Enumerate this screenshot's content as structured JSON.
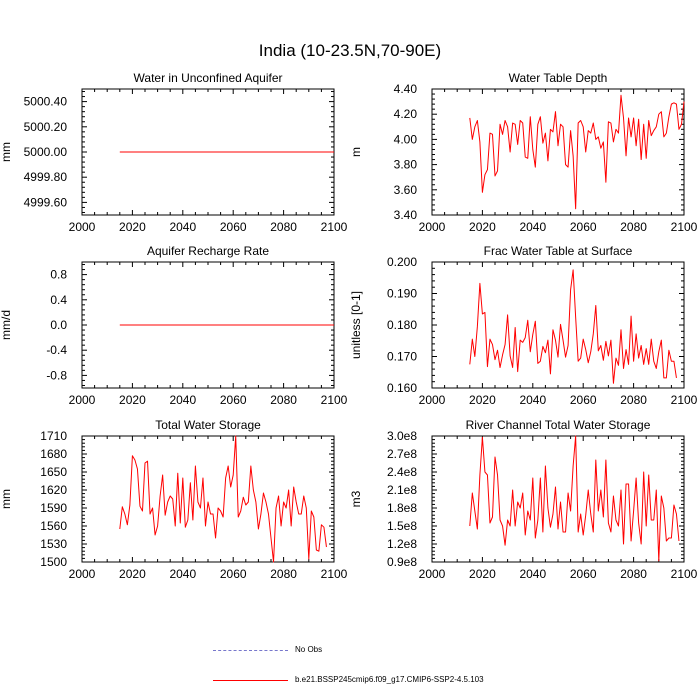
{
  "figure_title": "India (10-23.5N,70-90E)",
  "legend": {
    "obs_label": "No Obs",
    "model_label": "b.e21.BSSP245cmip6.f09_g17.CMIP6-SSP2-4.5.103",
    "obs_color": "#7777cc",
    "model_color": "#ff0000"
  },
  "chart_data": [
    {
      "type": "line",
      "title": "Water in Unconfined Aquifer",
      "ylabel": "mm",
      "xlim": [
        2000,
        2100
      ],
      "ylim": [
        4999.5,
        5000.5
      ],
      "xticks": [
        2000,
        2020,
        2040,
        2060,
        2080,
        2100
      ],
      "yticks": [
        4999.6,
        4999.8,
        5000.0,
        5000.2,
        5000.4
      ],
      "ytick_labels": [
        "4999.60",
        "4999.80",
        "5000.00",
        "5000.20",
        "5000.40"
      ],
      "series": [
        {
          "name": "b.e21.BSSP245cmip6.f09_g17.CMIP6-SSP2-4.5.103",
          "x_start": 2015,
          "values": [
            5000,
            5000,
            5000,
            5000,
            5000,
            5000,
            5000,
            5000,
            5000,
            5000,
            5000,
            5000,
            5000,
            5000,
            5000,
            5000,
            5000,
            5000,
            5000,
            5000,
            5000,
            5000,
            5000,
            5000,
            5000,
            5000,
            5000,
            5000,
            5000,
            5000,
            5000,
            5000,
            5000,
            5000,
            5000,
            5000,
            5000,
            5000,
            5000,
            5000,
            5000,
            5000,
            5000,
            5000,
            5000,
            5000,
            5000,
            5000,
            5000,
            5000,
            5000,
            5000,
            5000,
            5000,
            5000,
            5000,
            5000,
            5000,
            5000,
            5000,
            5000,
            5000,
            5000,
            5000,
            5000,
            5000,
            5000,
            5000,
            5000,
            5000,
            5000,
            5000,
            5000,
            5000,
            5000,
            5000,
            5000,
            5000,
            5000,
            5000,
            5000,
            5000,
            5000,
            5000,
            5000,
            5000
          ]
        }
      ]
    },
    {
      "type": "line",
      "title": "Water Table Depth",
      "ylabel": "m",
      "xlim": [
        2000,
        2100
      ],
      "ylim": [
        3.4,
        4.4
      ],
      "xticks": [
        2000,
        2020,
        2040,
        2060,
        2080,
        2100
      ],
      "yticks": [
        3.4,
        3.6,
        3.8,
        4.0,
        4.2,
        4.4
      ],
      "ytick_labels": [
        "3.40",
        "3.60",
        "3.80",
        "4.00",
        "4.20",
        "4.40"
      ],
      "series": [
        {
          "name": "b.e21.BSSP245cmip6.f09_g17.CMIP6-SSP2-4.5.103",
          "x_start": 2015,
          "values": [
            4.17,
            4.0,
            4.1,
            4.15,
            3.98,
            3.58,
            3.72,
            3.76,
            4.05,
            4.04,
            3.71,
            3.75,
            4.12,
            4.04,
            4.15,
            4.1,
            3.9,
            4.13,
            4.12,
            3.96,
            4.15,
            4.13,
            3.86,
            3.85,
            4.18,
            3.92,
            3.78,
            4.12,
            4.18,
            3.97,
            4.05,
            3.83,
            4.08,
            4.06,
            4.22,
            3.95,
            4.12,
            4.1,
            3.8,
            3.78,
            4.07,
            3.87,
            3.45,
            4.13,
            4.15,
            4.1,
            3.9,
            4.07,
            4.05,
            4.13,
            4.0,
            4.02,
            3.93,
            3.98,
            3.66,
            4.14,
            4.13,
            3.98,
            4.08,
            4.05,
            4.35,
            4.17,
            3.87,
            4.17,
            4.02,
            4.17,
            3.95,
            4.16,
            3.84,
            4.12,
            3.85,
            4.15,
            4.03,
            4.07,
            4.1,
            4.2,
            4.22,
            4.02,
            4.05,
            4.18,
            4.28,
            4.29,
            4.28,
            4.08,
            4.12,
            4.3
          ]
        }
      ]
    },
    {
      "type": "line",
      "title": "Aquifer Recharge Rate",
      "ylabel": "mm/d",
      "xlim": [
        2000,
        2100
      ],
      "ylim": [
        -1.0,
        1.0
      ],
      "xticks": [
        2000,
        2020,
        2040,
        2060,
        2080,
        2100
      ],
      "yticks": [
        -0.8,
        -0.4,
        0.0,
        0.4,
        0.8
      ],
      "ytick_labels": [
        "-0.8",
        "-0.4",
        "0.0",
        "0.4",
        "0.8"
      ],
      "series": [
        {
          "name": "b.e21.BSSP245cmip6.f09_g17.CMIP6-SSP2-4.5.103",
          "x_start": 2015,
          "values": [
            0,
            0,
            0,
            0,
            0,
            0,
            0,
            0,
            0,
            0,
            0,
            0,
            0,
            0,
            0,
            0,
            0,
            0,
            0,
            0,
            0,
            0,
            0,
            0,
            0,
            0,
            0,
            0,
            0,
            0,
            0,
            0,
            0,
            0,
            0,
            0,
            0,
            0,
            0,
            0,
            0,
            0,
            0,
            0,
            0,
            0,
            0,
            0,
            0,
            0,
            0,
            0,
            0,
            0,
            0,
            0,
            0,
            0,
            0,
            0,
            0,
            0,
            0,
            0,
            0,
            0,
            0,
            0,
            0,
            0,
            0,
            0,
            0,
            0,
            0,
            0,
            0,
            0,
            0,
            0,
            0,
            0,
            0,
            0,
            0,
            0
          ]
        }
      ]
    },
    {
      "type": "line",
      "title": "Frac Water Table at Surface",
      "ylabel": "unitless [0-1]",
      "xlim": [
        2000,
        2100
      ],
      "ylim": [
        0.16,
        0.2
      ],
      "xticks": [
        2000,
        2020,
        2040,
        2060,
        2080,
        2100
      ],
      "yticks": [
        0.16,
        0.17,
        0.18,
        0.19,
        0.2
      ],
      "ytick_labels": [
        "0.160",
        "0.170",
        "0.180",
        "0.190",
        "0.200"
      ],
      "series": [
        {
          "name": "b.e21.BSSP245cmip6.f09_g17.CMIP6-SSP2-4.5.103",
          "x_start": 2015,
          "values": [
            0.1675,
            0.1755,
            0.17,
            0.1795,
            0.1932,
            0.1835,
            0.184,
            0.1668,
            0.1755,
            0.1738,
            0.169,
            0.172,
            0.1665,
            0.1705,
            0.1738,
            0.1832,
            0.1702,
            0.1665,
            0.1792,
            0.1652,
            0.1752,
            0.1745,
            0.176,
            0.1815,
            0.1715,
            0.177,
            0.1812,
            0.1678,
            0.1685,
            0.1732,
            0.1712,
            0.1752,
            0.1645,
            0.1785,
            0.1752,
            0.1698,
            0.1802,
            0.1752,
            0.1698,
            0.1735,
            0.1912,
            0.1975,
            0.1825,
            0.1685,
            0.1695,
            0.1755,
            0.1722,
            0.168,
            0.1715,
            0.1772,
            0.1862,
            0.1718,
            0.1735,
            0.1688,
            0.1748,
            0.1702,
            0.1752,
            0.1615,
            0.1695,
            0.1672,
            0.1785,
            0.1662,
            0.1722,
            0.1675,
            0.1828,
            0.1685,
            0.1772,
            0.1695,
            0.1735,
            0.1675,
            0.1725,
            0.1675,
            0.1755,
            0.1685,
            0.1662,
            0.1715,
            0.1752,
            0.1632,
            0.1632,
            0.172,
            0.1685,
            0.1685,
            0.1632
          ]
        }
      ]
    },
    {
      "type": "line",
      "title": "Total Water Storage",
      "ylabel": "mm",
      "xlim": [
        2000,
        2100
      ],
      "ylim": [
        1500,
        1710
      ],
      "xticks": [
        2000,
        2020,
        2040,
        2060,
        2080,
        2100
      ],
      "yticks": [
        1500,
        1530,
        1560,
        1590,
        1620,
        1650,
        1680,
        1710
      ],
      "ytick_labels": [
        "1500",
        "1530",
        "1560",
        "1590",
        "1620",
        "1650",
        "1680",
        "1710"
      ],
      "series": [
        {
          "name": "b.e21.BSSP245cmip6.f09_g17.CMIP6-SSP2-4.5.103",
          "x_start": 2015,
          "values": [
            1555,
            1592,
            1580,
            1562,
            1595,
            1677,
            1670,
            1655,
            1593,
            1585,
            1665,
            1668,
            1580,
            1590,
            1545,
            1560,
            1610,
            1645,
            1578,
            1600,
            1610,
            1605,
            1560,
            1648,
            1565,
            1640,
            1558,
            1570,
            1632,
            1570,
            1660,
            1600,
            1590,
            1640,
            1560,
            1600,
            1580,
            1580,
            1540,
            1590,
            1585,
            1575,
            1640,
            1660,
            1625,
            1645,
            1710,
            1575,
            1585,
            1608,
            1595,
            1600,
            1660,
            1620,
            1600,
            1555,
            1580,
            1615,
            1600,
            1580,
            1540,
            1500,
            1590,
            1610,
            1560,
            1600,
            1590,
            1620,
            1560,
            1625,
            1600,
            1580,
            1580,
            1610,
            1590,
            1505,
            1585,
            1575,
            1520,
            1518,
            1562,
            1558,
            1525
          ]
        }
      ]
    },
    {
      "type": "line",
      "title": "River Channel Total Water Storage",
      "ylabel": "m3",
      "xlim": [
        2000,
        2100
      ],
      "ylim": [
        90000000.0,
        300000000.0
      ],
      "xticks": [
        2000,
        2020,
        2040,
        2060,
        2080,
        2100
      ],
      "yticks": [
        90000000.0,
        120000000.0,
        150000000.0,
        180000000.0,
        210000000.0,
        240000000.0,
        270000000.0,
        300000000.0
      ],
      "ytick_labels": [
        "0.9e8",
        "1.2e8",
        "1.5e8",
        "1.8e8",
        "2.1e8",
        "2.4e8",
        "2.7e8",
        "3.0e8"
      ],
      "series": [
        {
          "name": "b.e21.BSSP245cmip6.f09_g17.CMIP6-SSP2-4.5.103",
          "x_start": 2015,
          "values": [
            150000000.0,
            205000000.0,
            175000000.0,
            145000000.0,
            235000000.0,
            298000000.0,
            240000000.0,
            235000000.0,
            155000000.0,
            165000000.0,
            265000000.0,
            235000000.0,
            160000000.0,
            150000000.0,
            118000000.0,
            160000000.0,
            150000000.0,
            210000000.0,
            150000000.0,
            190000000.0,
            180000000.0,
            205000000.0,
            135000000.0,
            175000000.0,
            160000000.0,
            230000000.0,
            130000000.0,
            160000000.0,
            230000000.0,
            140000000.0,
            250000000.0,
            180000000.0,
            148000000.0,
            170000000.0,
            215000000.0,
            145000000.0,
            190000000.0,
            140000000.0,
            140000000.0,
            205000000.0,
            175000000.0,
            250000000.0,
            300000000.0,
            140000000.0,
            170000000.0,
            135000000.0,
            168000000.0,
            210000000.0,
            170000000.0,
            140000000.0,
            260000000.0,
            175000000.0,
            210000000.0,
            165000000.0,
            260000000.0,
            155000000.0,
            140000000.0,
            200000000.0,
            160000000.0,
            150000000.0,
            210000000.0,
            120000000.0,
            220000000.0,
            220000000.0,
            125000000.0,
            175000000.0,
            230000000.0,
            155000000.0,
            120000000.0,
            240000000.0,
            150000000.0,
            235000000.0,
            160000000.0,
            160000000.0,
            210000000.0,
            92000000.0,
            200000000.0,
            180000000.0,
            125000000.0,
            130000000.0,
            130000000.0,
            185000000.0,
            170000000.0,
            125000000.0
          ]
        }
      ]
    }
  ]
}
